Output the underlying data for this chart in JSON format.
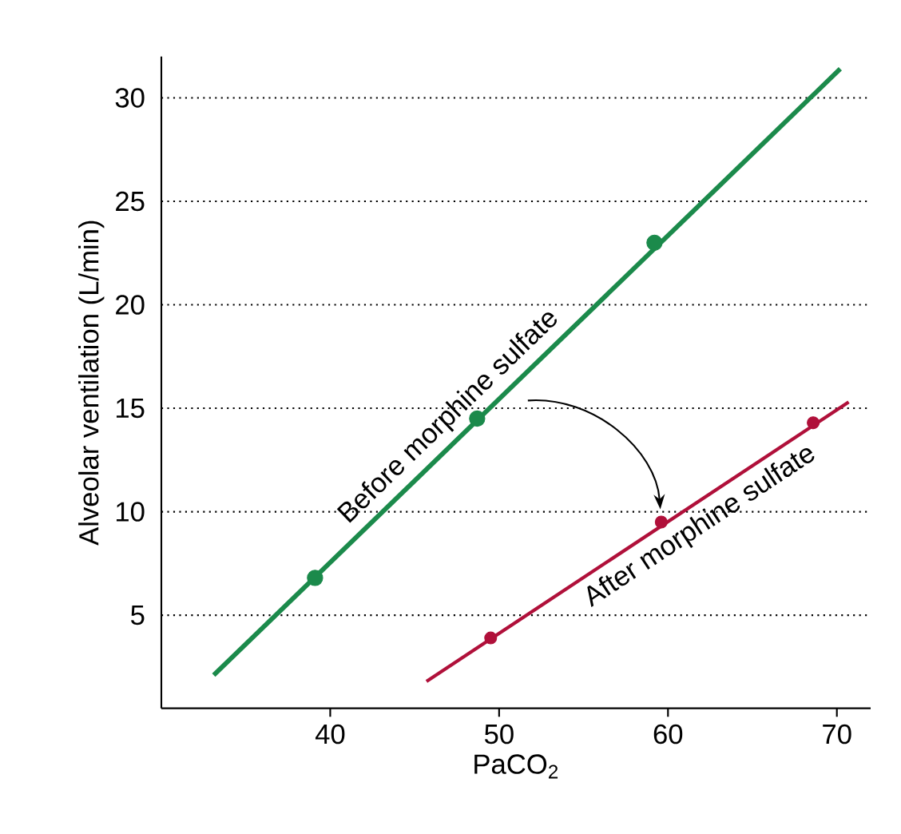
{
  "chart_data": {
    "type": "line",
    "xlabel": "PaCO$_{2}$",
    "ylabel": "Alveolar ventilation (L/min)",
    "xlim": [
      30,
      72
    ],
    "ylim": [
      0.5,
      32
    ],
    "xticks": [
      40,
      50,
      60,
      70
    ],
    "yticks": [
      5,
      10,
      15,
      20,
      25,
      30
    ],
    "grid": "y",
    "series": [
      {
        "name": "Before morphine sulfate",
        "color": "#1b8a4b",
        "marker": "none",
        "x": [
          33.1,
          70.2
        ],
        "values": [
          2.1,
          31.4
        ]
      },
      {
        "color": "#1b8a4b",
        "type": "scatter",
        "marker": "circle",
        "x": [
          39.1,
          48.7,
          59.2
        ],
        "values": [
          6.8,
          14.5,
          23.0
        ]
      },
      {
        "name": "After morphine sulfate",
        "color": "#b0103a",
        "marker": "none",
        "x": [
          45.7,
          70.7
        ],
        "values": [
          1.8,
          15.3
        ]
      },
      {
        "color": "#b0103a",
        "type": "scatter",
        "marker": "circle",
        "x": [
          49.5,
          59.6,
          68.6
        ],
        "values": [
          3.9,
          9.5,
          14.3
        ]
      }
    ]
  }
}
